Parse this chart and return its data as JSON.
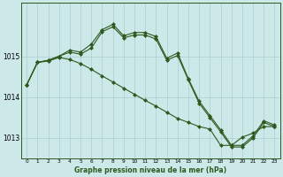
{
  "title": "Graphe pression niveau de la mer (hPa)",
  "bg_color": "#cce8e8",
  "line_color": "#2d5a1e",
  "grid_color": "#aacfcf",
  "xlim": [
    -0.5,
    23.5
  ],
  "ylim": [
    1012.5,
    1016.3
  ],
  "yticks": [
    1013,
    1014,
    1015
  ],
  "xticks": [
    0,
    1,
    2,
    3,
    4,
    5,
    6,
    7,
    8,
    9,
    10,
    11,
    12,
    13,
    14,
    15,
    16,
    17,
    18,
    19,
    20,
    21,
    22,
    23
  ],
  "yA": [
    1014.3,
    1014.85,
    1014.9,
    1015.0,
    1015.15,
    1015.1,
    1015.3,
    1015.65,
    1015.78,
    1015.5,
    1015.58,
    1015.58,
    1015.48,
    1014.95,
    1015.08,
    1014.45,
    1013.9,
    1013.55,
    1013.2,
    1012.82,
    1012.82,
    1013.05,
    1013.42,
    1013.32
  ],
  "yB": [
    1014.3,
    1014.85,
    1014.9,
    1015.0,
    1015.1,
    1015.05,
    1015.2,
    1015.6,
    1015.72,
    1015.45,
    1015.52,
    1015.52,
    1015.42,
    1014.9,
    1015.02,
    1014.42,
    1013.85,
    1013.5,
    1013.15,
    1012.78,
    1012.78,
    1013.0,
    1013.38,
    1013.28
  ],
  "yC": [
    1014.3,
    1014.85,
    1014.88,
    1014.97,
    1014.92,
    1014.82,
    1014.68,
    1014.52,
    1014.37,
    1014.22,
    1014.07,
    1013.92,
    1013.78,
    1013.63,
    1013.48,
    1013.38,
    1013.28,
    1013.22,
    1012.82,
    1012.82,
    1013.02,
    1013.12,
    1013.28,
    1013.28
  ]
}
